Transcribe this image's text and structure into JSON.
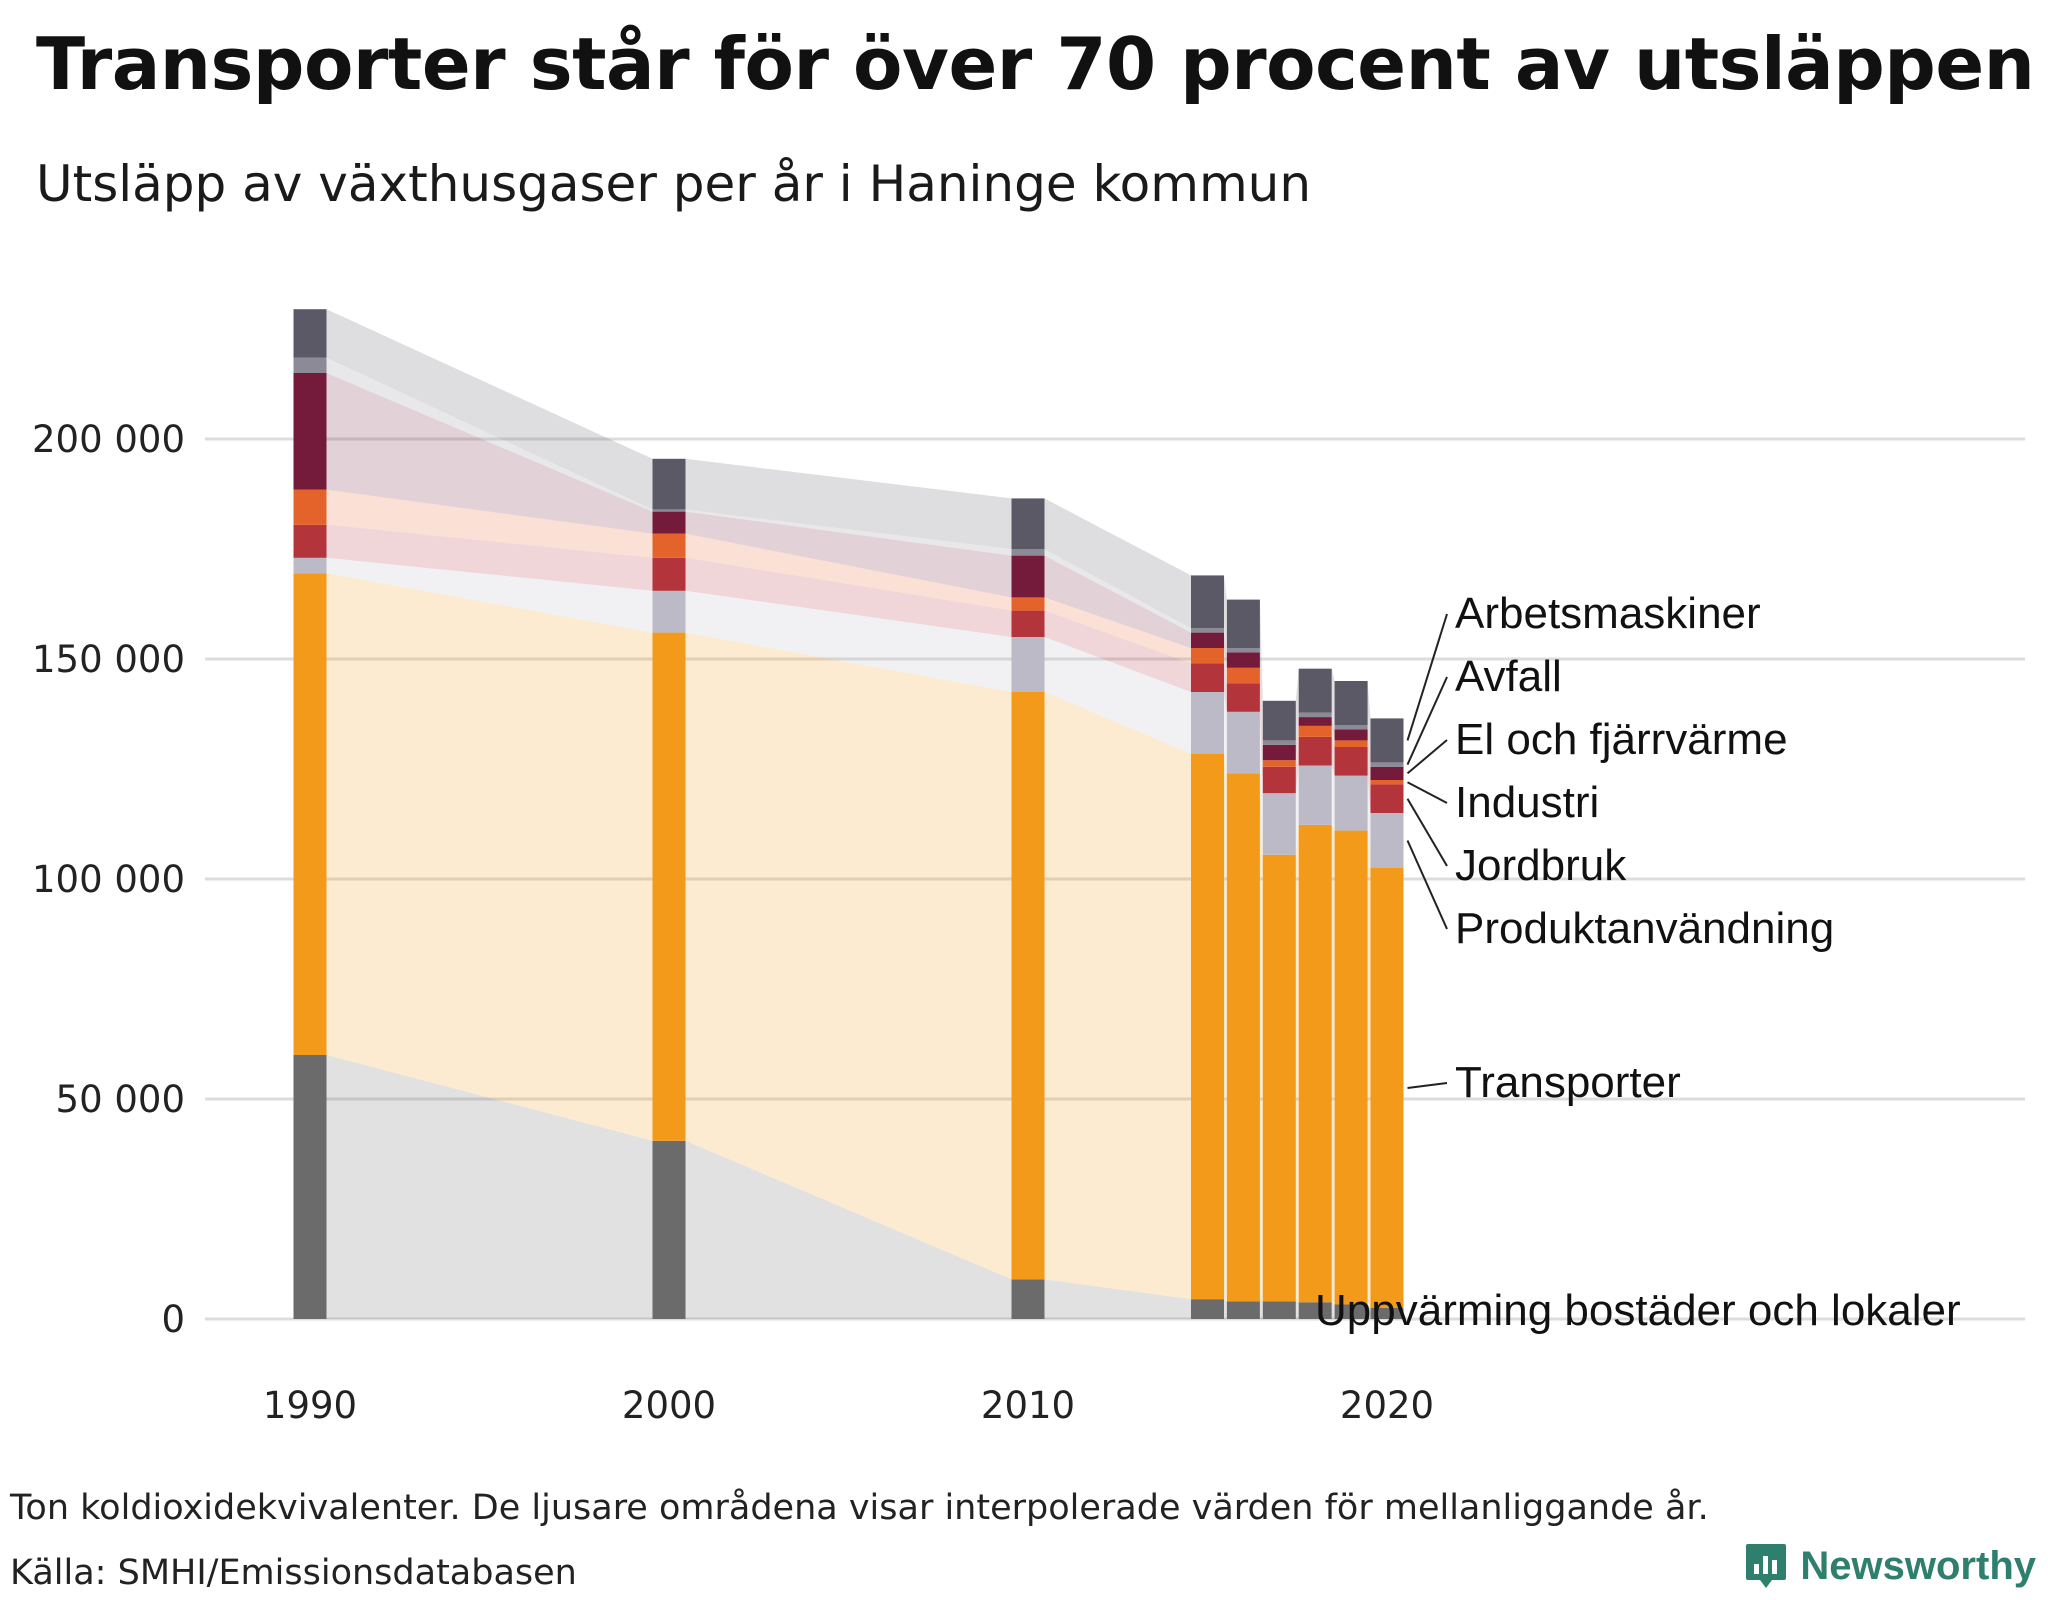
{
  "title": "Transporter står för över 70 procent av utsläppen",
  "subtitle": "Utsläpp av växthusgaser per år i Haninge kommun",
  "footnote": "Ton koldioxidekvivalenter. De ljusare områdena visar interpolerade värden för mellanliggande år.",
  "source": "Källa: SMHI/Emissionsdatabasen",
  "brand": "Newsworthy",
  "chart_data": {
    "type": "bar",
    "stacked": true,
    "x": [
      1990,
      2000,
      2010,
      2015,
      2016,
      2017,
      2018,
      2019,
      2020
    ],
    "x_ticks": [
      "1990",
      "2000",
      "2010",
      "2020"
    ],
    "y_ticks": [
      "0",
      "50 000",
      "100 000",
      "150 000",
      "200 000"
    ],
    "ylim": [
      0,
      230000
    ],
    "grid": true,
    "legend": "direct labels right of last bar",
    "series": [
      {
        "name": "Uppvärming bostäder och lokaler",
        "color": "#6b6b6b",
        "values": [
          60000,
          40500,
          9000,
          4500,
          4000,
          4000,
          3800,
          3300,
          2500
        ]
      },
      {
        "name": "Transporter",
        "color": "#f49a1a",
        "values": [
          109500,
          115500,
          133500,
          124000,
          120000,
          101500,
          108500,
          107700,
          100000
        ]
      },
      {
        "name": "Produktanvändning",
        "color": "#bbbac6",
        "values": [
          3500,
          9500,
          12500,
          14000,
          14000,
          14000,
          13500,
          12500,
          12500
        ]
      },
      {
        "name": "Jordbruk",
        "color": "#b3343a",
        "values": [
          7500,
          7500,
          6000,
          6500,
          6500,
          6000,
          6500,
          6500,
          6500
        ]
      },
      {
        "name": "Industri",
        "color": "#e4632b",
        "values": [
          8000,
          5500,
          3000,
          3500,
          3500,
          1500,
          2500,
          1500,
          1000
        ]
      },
      {
        "name": "El och fjärrvärme",
        "color": "#741a3a",
        "values": [
          26500,
          5000,
          9500,
          3500,
          3500,
          3500,
          2000,
          2500,
          3000
        ]
      },
      {
        "name": "Avfall",
        "color": "#8c8a96",
        "values": [
          3500,
          500,
          1500,
          1000,
          1000,
          1000,
          1000,
          1000,
          1000
        ]
      },
      {
        "name": "Arbetsmaskiner",
        "color": "#5b5966",
        "values": [
          11000,
          11500,
          11500,
          12000,
          11000,
          9000,
          10000,
          10000,
          10000
        ]
      }
    ]
  }
}
